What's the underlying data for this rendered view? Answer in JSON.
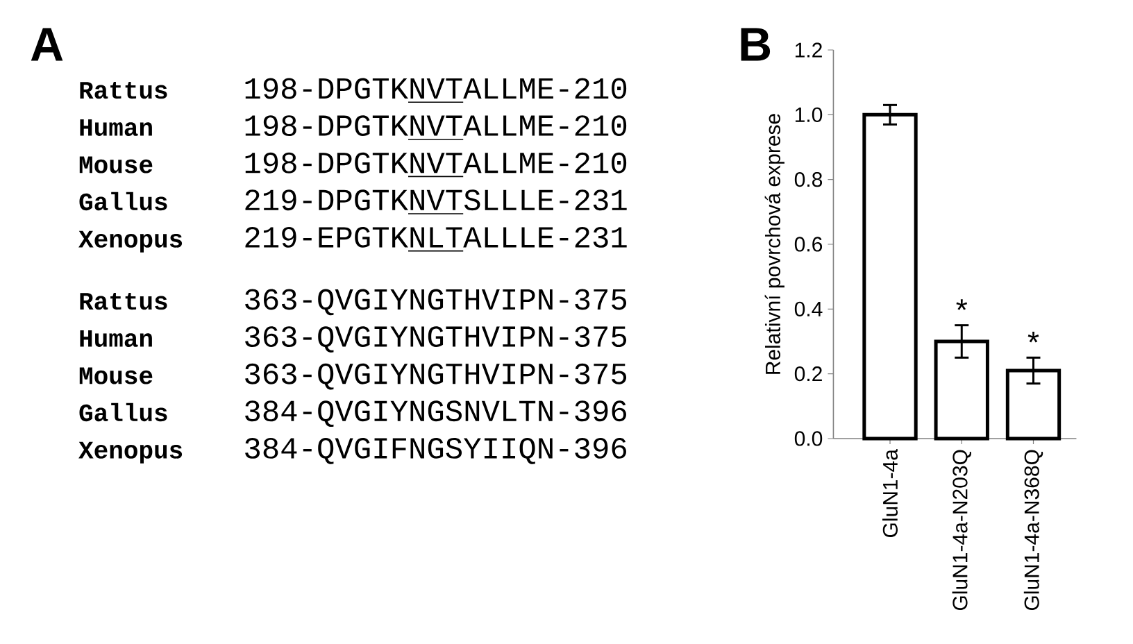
{
  "chart_data": [
    {
      "type": "other",
      "title": "A",
      "annotations": [
        "Rattus",
        "198-DPGTKNVTALLME-210",
        "Human",
        "198-DPGTKNVTALLME-210",
        "Mouse",
        "198-DPGTKNVTALLME-210",
        "Gallus",
        "219-DPGTKNVTSLLLE-231",
        "Xenopus",
        "219-EPGTKNLTALLLE-231",
        "Rattus",
        "363-QVGIYNGTHVIPN-375",
        "Human",
        "363-QVGIYNGTHVIPN-375",
        "Mouse",
        "363-QVGIYNGTHVIPN-375",
        "Gallus",
        "384-QVGIYNGSNVLTN-396",
        "Xenopus",
        "384-QVGIFNGSYIIQN-396"
      ]
    },
    {
      "type": "bar",
      "title": "B",
      "ylabel": "Relativní povrchová exprese",
      "categories": [
        "GluN1-4a",
        "GluN1-4a-N203Q",
        "GluN1-4a-N368Q"
      ],
      "values": [
        1.0,
        0.3,
        0.21
      ],
      "color": "#ffffff",
      "errors": [
        0.03,
        0.05,
        0.04
      ],
      "ylim": [
        0,
        1.2
      ],
      "yticks": [
        {
          "value": 0,
          "label": "0.0"
        },
        0.2,
        0.4,
        0.6,
        0.8,
        {
          "value": 1,
          "label": "1.0"
        },
        1.2
      ],
      "annotations": [
        "*",
        "*"
      ]
    }
  ]
}
